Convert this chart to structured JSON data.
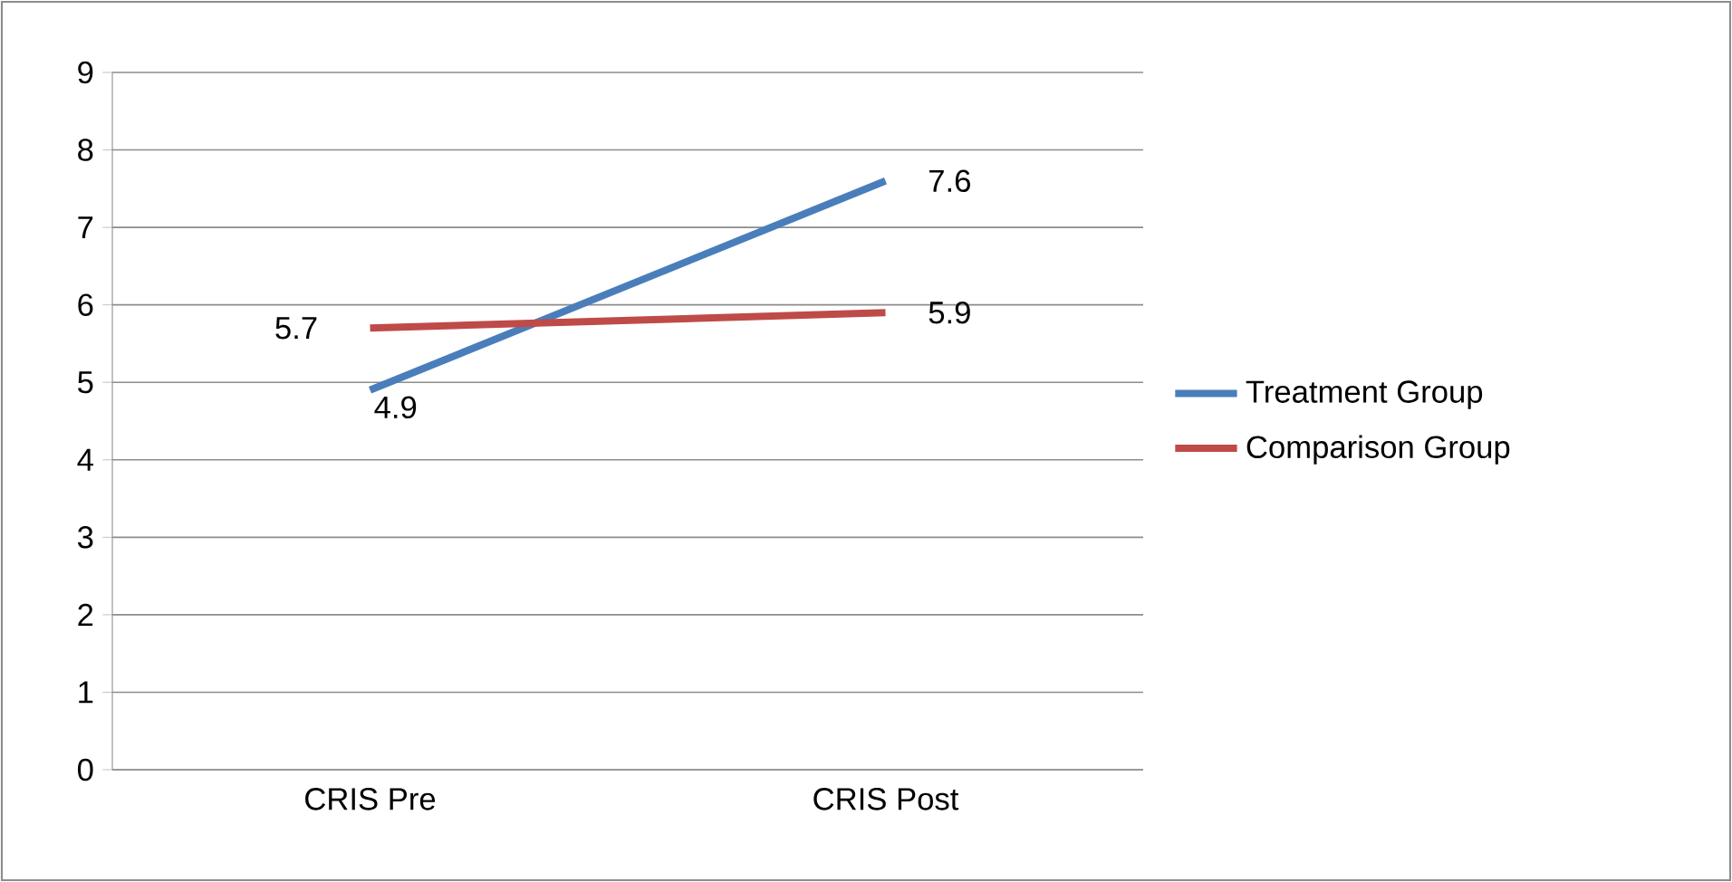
{
  "chart_data": {
    "type": "line",
    "categories": [
      "CRIS Pre",
      "CRIS Post"
    ],
    "series": [
      {
        "name": "Treatment Group",
        "color": "#4a7ebb",
        "values": [
          4.9,
          7.6
        ]
      },
      {
        "name": "Comparison Group",
        "color": "#be4b48",
        "values": [
          5.7,
          5.9
        ]
      }
    ],
    "ylim": [
      0,
      9
    ],
    "yticks": [
      0,
      1,
      2,
      3,
      4,
      5,
      6,
      7,
      8,
      9
    ],
    "grid": "y",
    "legend": "right",
    "data_labels": true,
    "marker": "none",
    "line_style": "solid"
  }
}
